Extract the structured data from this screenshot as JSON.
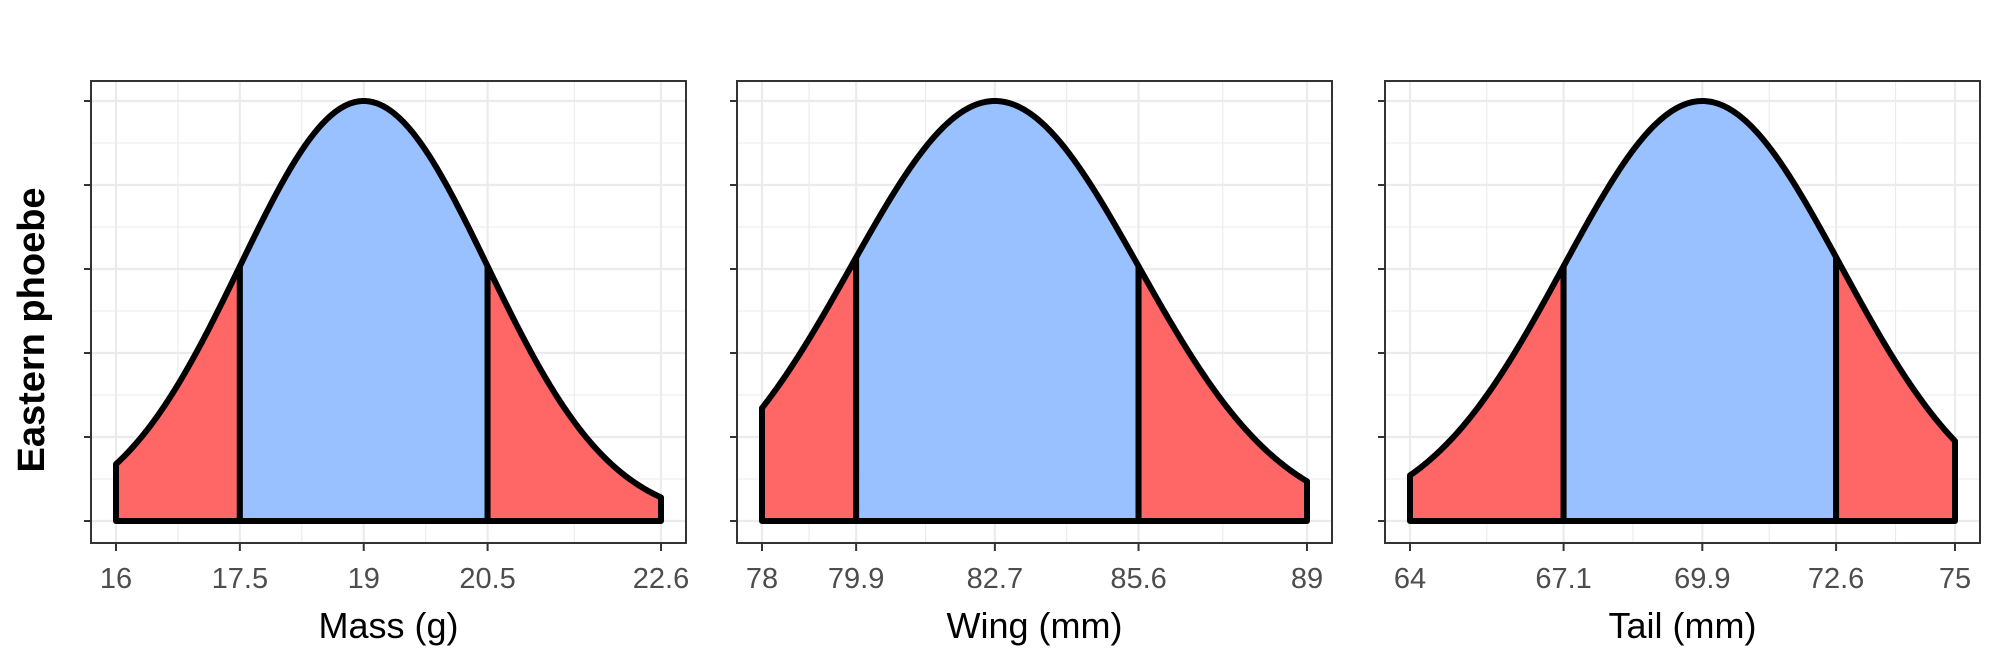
{
  "ylabel": "Eastern phoebe",
  "colors": {
    "center": "#99C1FF",
    "tails": "#FF6666",
    "outline": "#000000",
    "grid": "#EBEBEB",
    "panel_border": "#333333"
  },
  "chart_data": [
    {
      "type": "area",
      "xlabel": "Mass (g)",
      "ylabel": "Eastern phoebe",
      "mean": 19,
      "sd": 1.5,
      "xlim": [
        16,
        22.6
      ],
      "ticks": [
        16,
        17.5,
        19,
        20.5,
        22.6
      ],
      "tick_labels": [
        "16",
        "17.5",
        "19",
        "20.5",
        "22.6"
      ],
      "shaded_center": [
        17.5,
        20.5
      ],
      "grid": true
    },
    {
      "type": "area",
      "xlabel": "Wing (mm)",
      "ylabel": "Eastern phoebe",
      "mean": 82.7,
      "sd": 2.9,
      "xlim": [
        78,
        89
      ],
      "ticks": [
        78,
        79.9,
        82.7,
        85.6,
        89
      ],
      "tick_labels": [
        "78",
        "79.9",
        "82.7",
        "85.6",
        "89"
      ],
      "shaded_center": [
        79.9,
        85.6
      ],
      "grid": true
    },
    {
      "type": "area",
      "xlabel": "Tail (mm)",
      "ylabel": "Eastern phoebe",
      "mean": 69.9,
      "sd": 2.8,
      "xlim": [
        64,
        75
      ],
      "ticks": [
        64,
        67.1,
        69.9,
        72.6,
        75
      ],
      "tick_labels": [
        "64",
        "67.1",
        "69.9",
        "72.6",
        "75"
      ],
      "shaded_center": [
        67.1,
        72.6
      ],
      "grid": true
    }
  ]
}
